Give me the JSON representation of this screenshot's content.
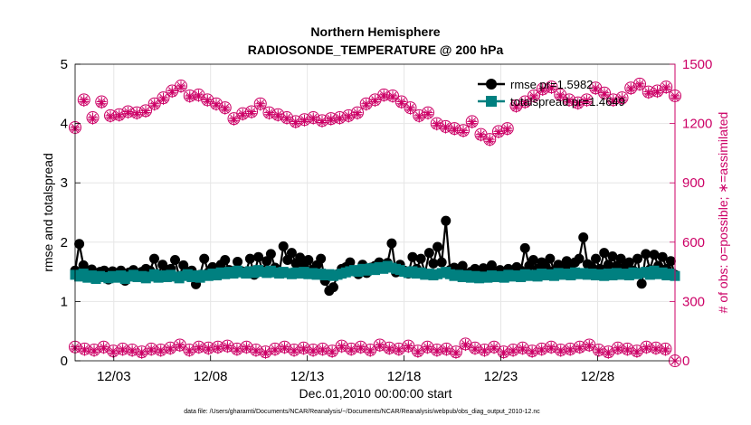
{
  "chart_data": {
    "type": "line",
    "title_line1": "Northern Hemisphere",
    "title_line2": "RADIOSONDE_TEMPERATURE @ 200 hPa",
    "xlabel": "Dec.01,2010 00:00:00 start",
    "ylabel_left": "rmse and totalspread",
    "ylabel_right": "# of obs: o=possible; ∗=assimilated",
    "footer": "data file: /Users/gharamti/Documents/NCAR/Reanalysis/~/Documents/NCAR/Reanalysis/webpub/obs_diag_output_2010-12.nc",
    "xlim": [
      1,
      32
    ],
    "ylim_left": [
      0,
      5
    ],
    "ylim_right": [
      0,
      1500
    ],
    "x_ticks": [
      3,
      8,
      13,
      18,
      23,
      28
    ],
    "x_tick_labels": [
      "12/03",
      "12/08",
      "12/13",
      "12/18",
      "12/23",
      "12/28"
    ],
    "y_left_ticks": [
      "0",
      "1",
      "2",
      "3",
      "4",
      "5"
    ],
    "y_right_ticks": [
      "0",
      "300",
      "600",
      "900",
      "1200",
      "1500"
    ],
    "legend_position": "top-right",
    "colors": {
      "rmse": "#000000",
      "totalspread": "#008080",
      "obs": "#cc0066",
      "axes": "#000000",
      "right_axis": "#cc0066",
      "grid": "#e6e6e6"
    },
    "series": [
      {
        "name": "rmse pr=1.5982",
        "axis": "left",
        "marker": "filled-circle",
        "values": [
          1.52,
          1.97,
          1.61,
          1.48,
          1.54,
          1.43,
          1.5,
          1.52,
          1.37,
          1.51,
          1.45,
          1.52,
          1.35,
          1.49,
          1.53,
          1.46,
          1.5,
          1.55,
          1.52,
          1.72,
          1.46,
          1.62,
          1.53,
          1.55,
          1.7,
          1.42,
          1.61,
          1.5,
          1.52,
          1.29,
          1.45,
          1.72,
          1.49,
          1.58,
          1.55,
          1.62,
          1.7,
          1.53,
          1.5,
          1.67,
          1.51,
          1.5,
          1.72,
          1.45,
          1.75,
          1.52,
          1.68,
          1.8,
          1.57,
          1.48,
          1.93,
          1.7,
          1.82,
          1.64,
          1.74,
          1.6,
          1.7,
          1.53,
          1.61,
          1.72,
          1.35,
          1.18,
          1.24,
          1.46,
          1.55,
          1.58,
          1.66,
          1.52,
          1.46,
          1.62,
          1.48,
          1.57,
          1.6,
          1.66,
          1.58,
          1.65,
          1.98,
          1.49,
          1.62,
          1.52,
          1.47,
          1.75,
          1.55,
          1.72,
          1.48,
          1.82,
          1.64,
          1.92,
          1.66,
          2.36,
          1.53,
          1.57,
          1.52,
          1.6,
          1.47,
          1.5,
          1.55,
          1.48,
          1.56,
          1.52,
          1.61,
          1.47,
          1.53,
          1.49,
          1.55,
          1.5,
          1.58,
          1.52,
          1.9,
          1.6,
          1.7,
          1.55,
          1.66,
          1.58,
          1.72,
          1.52,
          1.62,
          1.6,
          1.68,
          1.55,
          1.66,
          1.72,
          2.08,
          1.63,
          1.58,
          1.72,
          1.55,
          1.82,
          1.62,
          1.76,
          1.6,
          1.72,
          1.58,
          1.66,
          1.52,
          1.72,
          1.3,
          1.8,
          1.54,
          1.79,
          1.6,
          1.75,
          1.55,
          1.68,
          1.45
        ]
      },
      {
        "name": "totalspread pr=1.4649",
        "axis": "left",
        "marker": "filled-square",
        "values": [
          1.45,
          1.42,
          1.47,
          1.4,
          1.44,
          1.38,
          1.43,
          1.41,
          1.39,
          1.43,
          1.4,
          1.44,
          1.38,
          1.42,
          1.45,
          1.41,
          1.43,
          1.39,
          1.42,
          1.46,
          1.4,
          1.44,
          1.41,
          1.45,
          1.42,
          1.39,
          1.43,
          1.46,
          1.41,
          1.44,
          1.4,
          1.45,
          1.43,
          1.47,
          1.44,
          1.49,
          1.46,
          1.5,
          1.47,
          1.52,
          1.49,
          1.47,
          1.51,
          1.48,
          1.53,
          1.5,
          1.48,
          1.52,
          1.49,
          1.47,
          1.5,
          1.48,
          1.46,
          1.49,
          1.47,
          1.5,
          1.46,
          1.48,
          1.45,
          1.47,
          1.44,
          1.46,
          1.43,
          1.45,
          1.47,
          1.49,
          1.51,
          1.53,
          1.5,
          1.55,
          1.52,
          1.56,
          1.53,
          1.58,
          1.55,
          1.6,
          1.57,
          1.55,
          1.53,
          1.5,
          1.48,
          1.51,
          1.47,
          1.49,
          1.45,
          1.47,
          1.44,
          1.46,
          1.48,
          1.5,
          1.46,
          1.43,
          1.45,
          1.41,
          1.44,
          1.4,
          1.43,
          1.39,
          1.42,
          1.4,
          1.44,
          1.41,
          1.43,
          1.4,
          1.45,
          1.42,
          1.44,
          1.41,
          1.46,
          1.43,
          1.45,
          1.42,
          1.47,
          1.44,
          1.46,
          1.43,
          1.48,
          1.45,
          1.47,
          1.44,
          1.49,
          1.46,
          1.48,
          1.45,
          1.47,
          1.44,
          1.46,
          1.43,
          1.47,
          1.44,
          1.48,
          1.45,
          1.47,
          1.44,
          1.49,
          1.46,
          1.48,
          1.5,
          1.45,
          1.52,
          1.46,
          1.49,
          1.44,
          1.47,
          1.43
        ]
      },
      {
        "name": "# obs possible",
        "axis": "right",
        "marker": "open-circle-asterisk",
        "values": [
          1180,
          1320,
          1230,
          1310,
          1240,
          1245,
          1260,
          1255,
          1265,
          1300,
          1330,
          1365,
          1390,
          1340,
          1345,
          1320,
          1300,
          1280,
          1225,
          1250,
          1260,
          1300,
          1255,
          1245,
          1230,
          1210,
          1220,
          1230,
          1215,
          1225,
          1230,
          1240,
          1255,
          1300,
          1320,
          1345,
          1340,
          1310,
          1280,
          1240,
          1255,
          1200,
          1185,
          1175,
          1165,
          1210,
          1145,
          1120,
          1160,
          1175,
          1290,
          1310,
          1340,
          1375,
          1385,
          1345,
          1320,
          1305,
          1320,
          1380,
          1355,
          1320,
          1330,
          1380,
          1400,
          1360,
          1365,
          1385,
          1340
        ]
      },
      {
        "name": "# obs assimilated",
        "axis": "right",
        "marker": "asterisk",
        "values": [
          1170,
          1310,
          1220,
          1300,
          1230,
          1235,
          1250,
          1245,
          1255,
          1290,
          1320,
          1355,
          1380,
          1330,
          1335,
          1310,
          1290,
          1270,
          1215,
          1240,
          1250,
          1290,
          1245,
          1235,
          1220,
          1200,
          1210,
          1220,
          1205,
          1215,
          1220,
          1230,
          1245,
          1290,
          1310,
          1335,
          1330,
          1300,
          1270,
          1230,
          1245,
          1190,
          1175,
          1165,
          1155,
          1200,
          1135,
          1110,
          1150,
          1165,
          1280,
          1300,
          1330,
          1365,
          1375,
          1335,
          1310,
          1295,
          1310,
          1370,
          1345,
          1310,
          1320,
          1370,
          1390,
          1350,
          1355,
          1375,
          1330
        ]
      },
      {
        "name": "# obs possible (low level)",
        "axis": "right",
        "marker": "open-circle-asterisk",
        "values": [
          70,
          60,
          55,
          70,
          50,
          60,
          55,
          45,
          60,
          55,
          65,
          80,
          55,
          70,
          65,
          70,
          75,
          60,
          70,
          55,
          45,
          60,
          70,
          55,
          65,
          55,
          60,
          50,
          75,
          60,
          70,
          55,
          80,
          65,
          60,
          75,
          50,
          70,
          55,
          60,
          45,
          85,
          65,
          55,
          70,
          45,
          55,
          65,
          50,
          60,
          70,
          55,
          60,
          70,
          80,
          55,
          45,
          65,
          60,
          50,
          70,
          65,
          60,
          0
        ]
      },
      {
        "name": "# obs assimilated (low level)",
        "axis": "right",
        "marker": "asterisk",
        "values": [
          60,
          50,
          45,
          60,
          40,
          50,
          45,
          35,
          50,
          45,
          55,
          70,
          45,
          60,
          55,
          60,
          65,
          50,
          60,
          45,
          35,
          50,
          60,
          45,
          55,
          45,
          50,
          40,
          65,
          50,
          60,
          45,
          70,
          55,
          50,
          65,
          40,
          60,
          45,
          50,
          35,
          75,
          55,
          45,
          60,
          35,
          45,
          55,
          40,
          50,
          60,
          45,
          50,
          60,
          70,
          45,
          35,
          55,
          50,
          40,
          60,
          55,
          50,
          0
        ]
      }
    ],
    "legend": [
      {
        "label": "rmse pr=1.5982",
        "marker": "filled-circle",
        "color": "#000000"
      },
      {
        "label": "totalspread pr=1.4649",
        "marker": "filled-square",
        "color": "#008080"
      }
    ]
  }
}
